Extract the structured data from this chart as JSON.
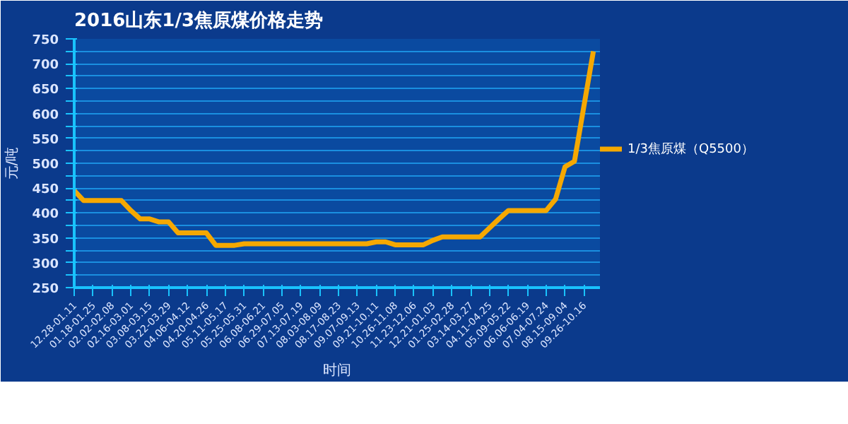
{
  "chart_data": {
    "type": "line",
    "title": "2016山东1/3焦原煤价格走势",
    "xlabel": "时间",
    "ylabel": "元/吨",
    "categories": [
      "12.28-01.11",
      null,
      "01.18-01.25",
      null,
      "02.02-02.08",
      null,
      "02.16-03.01",
      null,
      "03.08-03.15",
      null,
      "03.22-03.29",
      null,
      "04.06-04.12",
      null,
      "04.20-04.26",
      null,
      "05.11-05.17",
      null,
      "05.25-05.31",
      null,
      "06.08-06.21",
      null,
      "06.29-07.05",
      null,
      "07.13-07.19",
      null,
      "08.03-08.09",
      null,
      "08.17-08.23",
      null,
      "09.07-09.13",
      null,
      "09.21-10.11",
      null,
      "10.26-11.08",
      null,
      "11.23-12.06",
      null,
      "12.21-01.03",
      null,
      "01.25-02.28",
      null,
      "03.14-03.27",
      null,
      "04.11-04.25",
      null,
      "05.09-05.22",
      null,
      "06.06-06.19",
      null,
      "07.04-07.24",
      null,
      "08.15-09.04",
      null,
      "09.26-10.16",
      null
    ],
    "series": [
      {
        "name": "1/3焦原煤（Q5500）",
        "color": "#f5a800",
        "values": [
          445,
          425,
          425,
          425,
          425,
          425,
          405,
          388,
          388,
          382,
          382,
          360,
          360,
          360,
          360,
          335,
          335,
          335,
          338,
          338,
          338,
          338,
          338,
          338,
          338,
          338,
          338,
          338,
          338,
          338,
          338,
          338,
          342,
          342,
          336,
          336,
          336,
          336,
          345,
          352,
          352,
          352,
          352,
          352,
          370,
          388,
          405,
          405,
          405,
          405,
          405,
          428,
          493,
          504,
          615,
          725
        ]
      }
    ],
    "ylim": [
      250,
      750
    ],
    "yticks": [
      250,
      {
        "value": 275,
        "label": null
      },
      300,
      {
        "value": 325,
        "label": null
      },
      350,
      {
        "value": 375,
        "label": null
      },
      400,
      {
        "value": 425,
        "label": null
      },
      450,
      {
        "value": 475,
        "label": null
      },
      500,
      {
        "value": 525,
        "label": null
      },
      550,
      {
        "value": 575,
        "label": null
      },
      600,
      {
        "value": 625,
        "label": null
      },
      650,
      {
        "value": 675,
        "label": null
      },
      700,
      {
        "value": 725,
        "label": null
      },
      750
    ],
    "grid": "y",
    "legend": "right",
    "marker": "none",
    "line_style": "solid"
  }
}
